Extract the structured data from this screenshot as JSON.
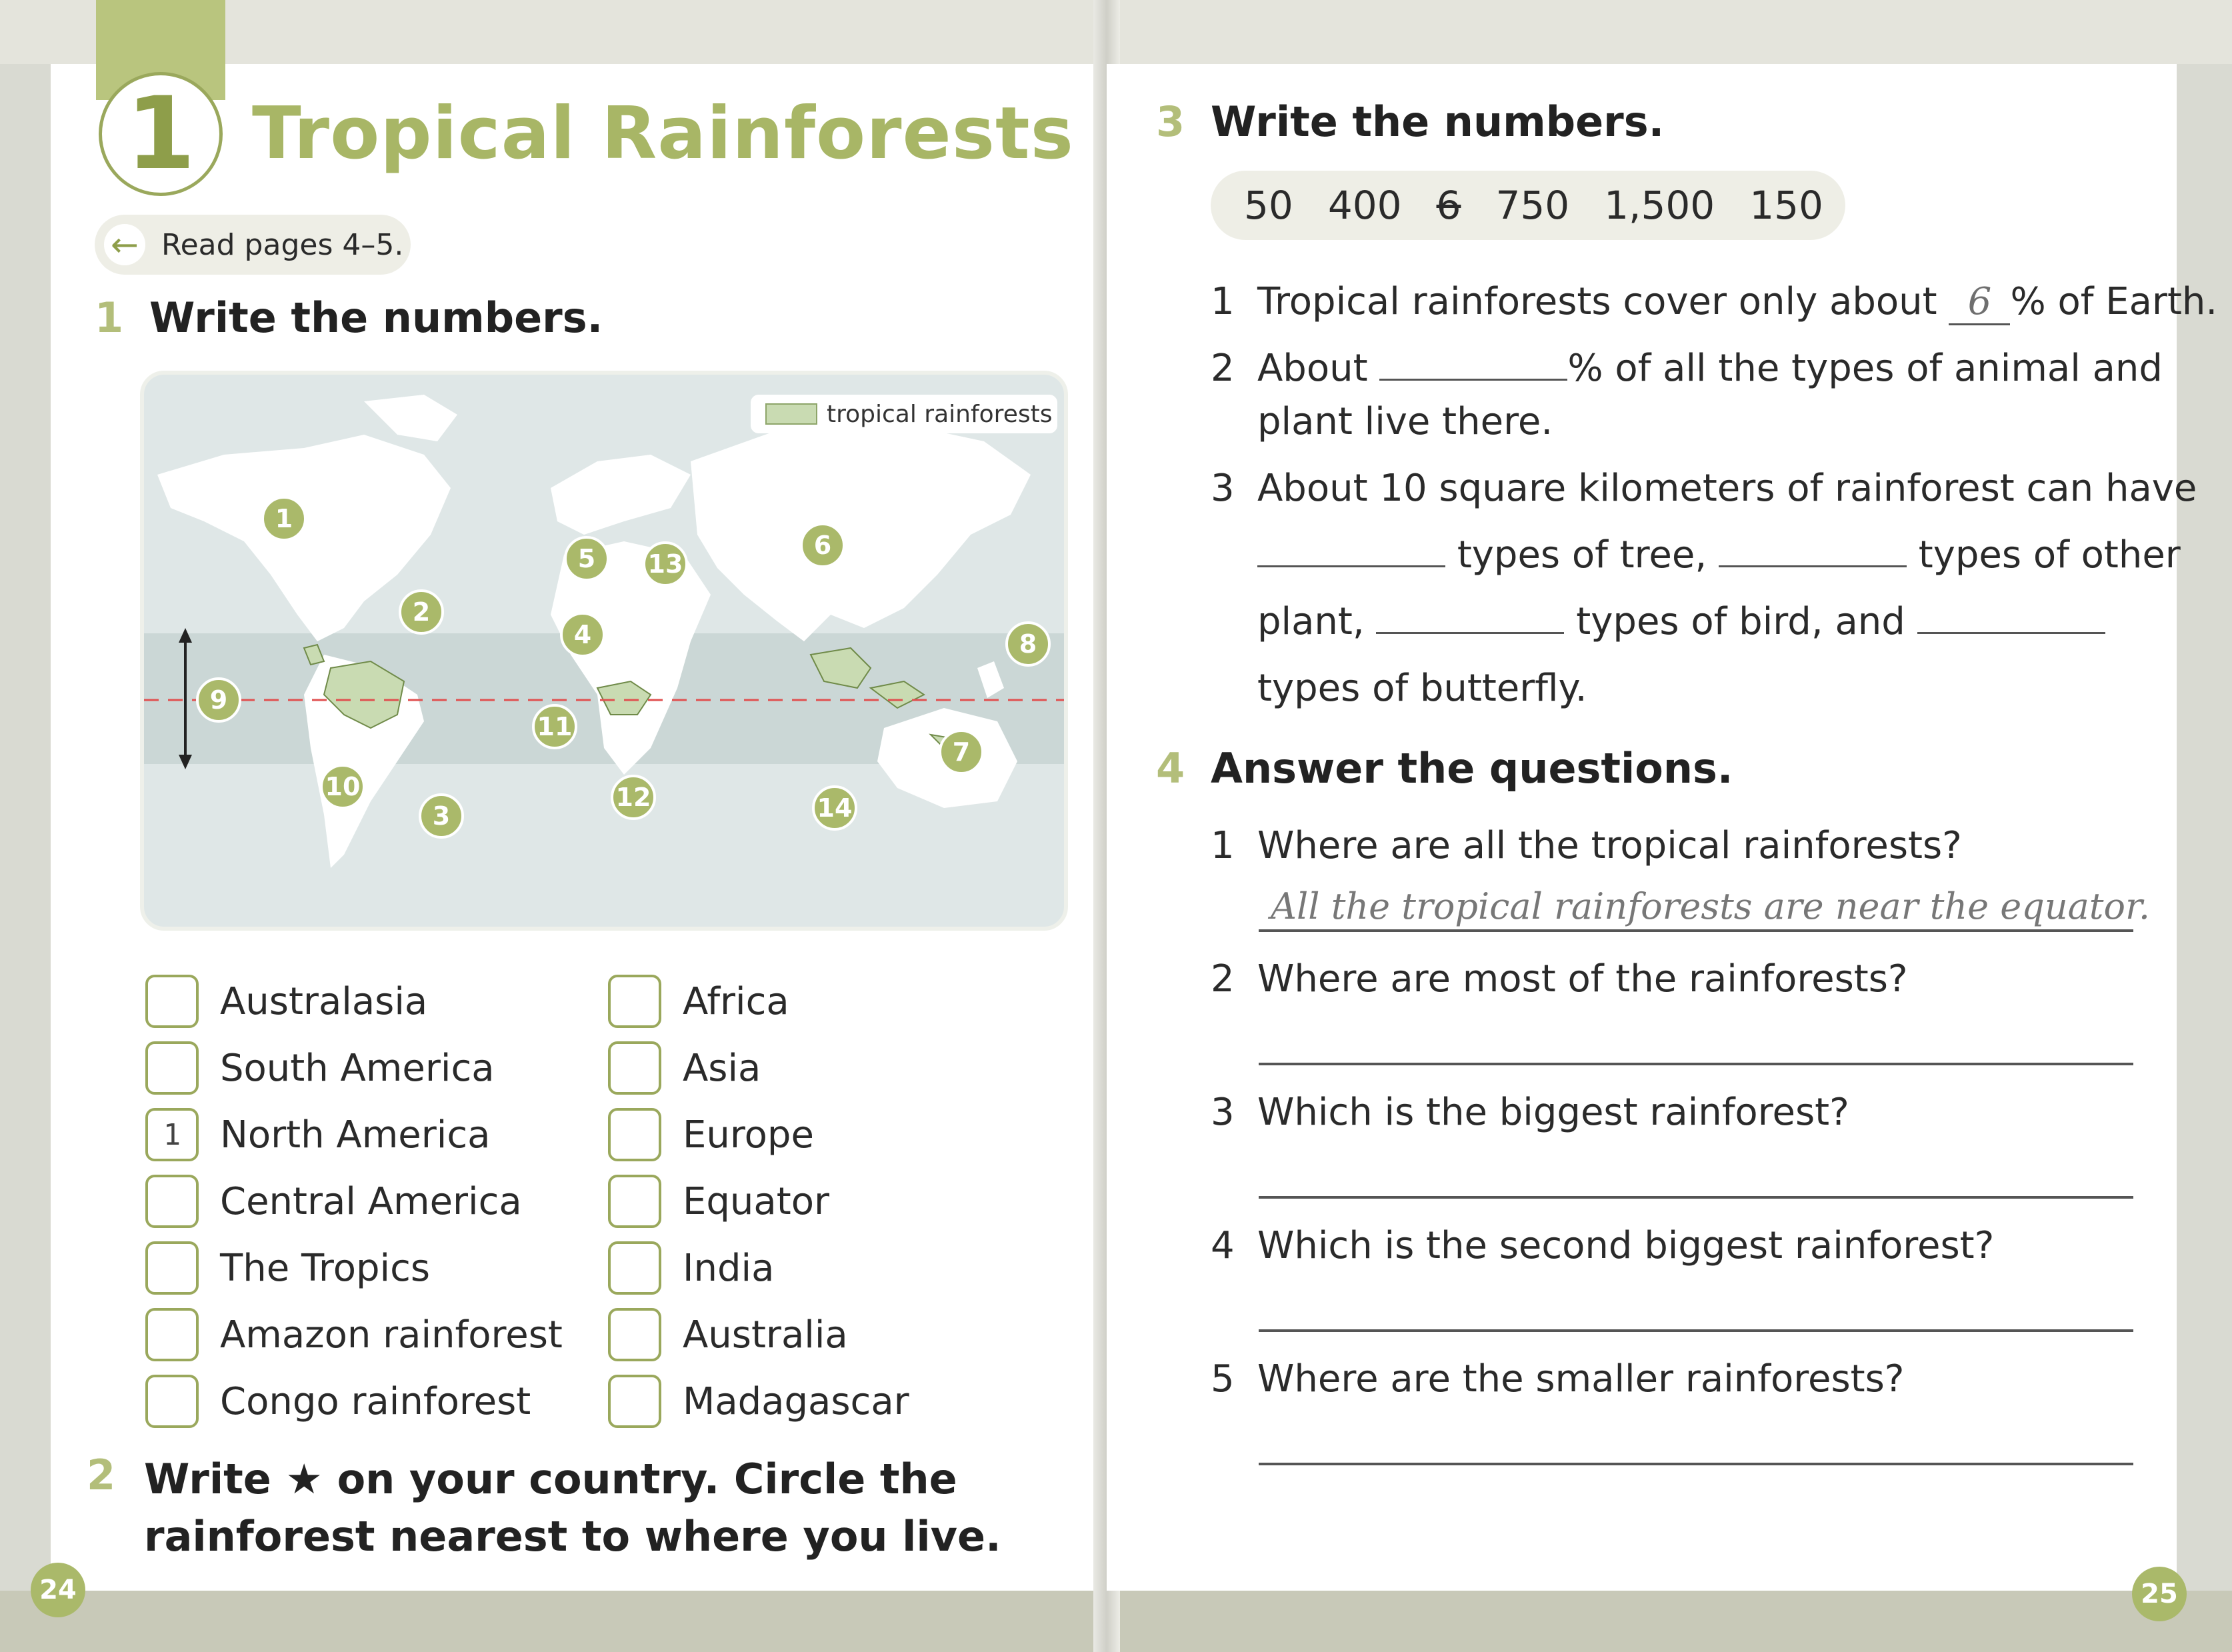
{
  "left_page": {
    "unit_number": "1",
    "title": "Tropical Rainforests",
    "read_pages": "Read pages 4–5.",
    "section1": {
      "number": "1",
      "title": "Write the numbers."
    },
    "map": {
      "legend_label": "tropical rainforests",
      "markers": [
        "1",
        "2",
        "3",
        "4",
        "5",
        "6",
        "7",
        "8",
        "9",
        "10",
        "11",
        "12",
        "13",
        "14"
      ]
    },
    "checklist_left": [
      {
        "label": "Australasia",
        "value": ""
      },
      {
        "label": "South America",
        "value": ""
      },
      {
        "label": "North America",
        "value": "1"
      },
      {
        "label": "Central America",
        "value": ""
      },
      {
        "label": "The Tropics",
        "value": ""
      },
      {
        "label": "Amazon rainforest",
        "value": ""
      },
      {
        "label": "Congo rainforest",
        "value": ""
      }
    ],
    "checklist_right": [
      {
        "label": "Africa",
        "value": ""
      },
      {
        "label": "Asia",
        "value": ""
      },
      {
        "label": "Europe",
        "value": ""
      },
      {
        "label": "Equator",
        "value": ""
      },
      {
        "label": "India",
        "value": ""
      },
      {
        "label": "Australia",
        "value": ""
      },
      {
        "label": "Madagascar",
        "value": ""
      }
    ],
    "section2": {
      "number": "2",
      "text": "Write ★ on your country. Circle the rainforest nearest to where you live."
    },
    "page_number": "24"
  },
  "right_page": {
    "section3": {
      "number": "3",
      "title": "Write the numbers.",
      "word_bank": [
        "50",
        "400",
        "6",
        "750",
        "1,500",
        "150"
      ],
      "struck_value": "6",
      "items": [
        {
          "num": "1",
          "pre": "Tropical rainforests cover only about",
          "answer": "6",
          "post": "% of Earth."
        },
        {
          "num": "2",
          "pre": "About",
          "post": "% of all the types of animal and",
          "line2": "plant live there."
        },
        {
          "num": "3",
          "line1": "About 10 square kilometers of rainforest can have",
          "a": "types of tree,",
          "b": "types of other",
          "c": "plant,",
          "d": "types of bird, and",
          "e": "types of butterfly."
        }
      ]
    },
    "section4": {
      "number": "4",
      "title": "Answer the questions.",
      "questions": [
        {
          "num": "1",
          "text": "Where are all the tropical rainforests?",
          "answer": "All the tropical rainforests are near the equator."
        },
        {
          "num": "2",
          "text": "Where are most of the rainforests?",
          "answer": ""
        },
        {
          "num": "3",
          "text": "Which is the biggest rainforest?",
          "answer": ""
        },
        {
          "num": "4",
          "text": "Which is the second biggest rainforest?",
          "answer": ""
        },
        {
          "num": "5",
          "text": "Where are the smaller rainforests?",
          "answer": ""
        }
      ]
    },
    "page_number": "25"
  },
  "colors": {
    "accent_green": "#aab96a",
    "title_green": "#a8b666",
    "map_sea": "#dfe7e7",
    "rainforest": "#c9dbb2"
  }
}
